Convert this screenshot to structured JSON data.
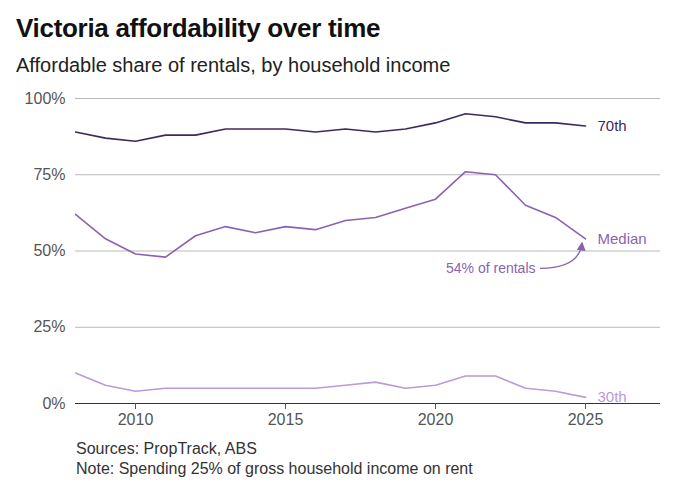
{
  "chart_data": {
    "type": "line",
    "title": "Victoria affordability over time",
    "subtitle": "Affordable share of rentals, by household income",
    "notes": [
      "Sources: PropTrack, ABS",
      "Note: Spending 25% of gross household income on rent"
    ],
    "x": [
      2008,
      2009,
      2010,
      2011,
      2012,
      2013,
      2014,
      2015,
      2016,
      2017,
      2018,
      2019,
      2020,
      2021,
      2022,
      2023,
      2024,
      2025
    ],
    "series": [
      {
        "name": "70th",
        "color": "#3d2a5c",
        "values": [
          89,
          87,
          86,
          88,
          88,
          90,
          90,
          90,
          89,
          90,
          89,
          90,
          92,
          95,
          94,
          92,
          92,
          91
        ]
      },
      {
        "name": "Median",
        "color": "#8a63b0",
        "values": [
          62,
          54,
          49,
          48,
          55,
          58,
          56,
          58,
          57,
          60,
          61,
          64,
          67,
          76,
          75,
          65,
          61,
          54
        ]
      },
      {
        "name": "30th",
        "color": "#b99bd8",
        "values": [
          10,
          6,
          4,
          5,
          5,
          5,
          5,
          5,
          5,
          6,
          7,
          5,
          6,
          9,
          9,
          5,
          4,
          2
        ]
      }
    ],
    "annotations": [
      {
        "text": "54% of rentals",
        "series": "Median"
      }
    ],
    "xlim": [
      2008,
      2027.5
    ],
    "xticks": [
      2010,
      2015,
      2020,
      2025
    ],
    "ylim": [
      0,
      100
    ],
    "yticks": [
      {
        "value": 0,
        "label": "0%"
      },
      {
        "value": 25,
        "label": "25%"
      },
      {
        "value": 50,
        "label": "50%"
      },
      {
        "value": 75,
        "label": "75%"
      },
      {
        "value": 100,
        "label": "100%"
      }
    ],
    "grid": true
  }
}
